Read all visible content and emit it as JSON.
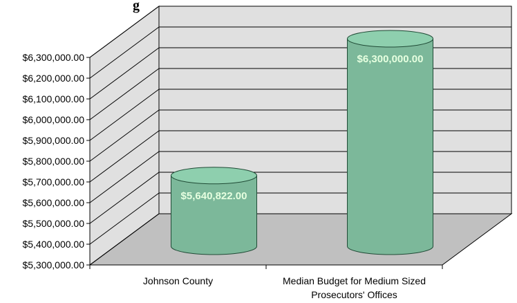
{
  "title_fragment": "g",
  "chart_data": {
    "type": "bar",
    "style": "3d-cylinder",
    "categories": [
      "Johnson County",
      "Median Budget for Medium Sized Prosecutors' Offices"
    ],
    "category_labels": [
      [
        "Johnson County"
      ],
      [
        "Median Budget for Medium Sized",
        "Prosecutors' Offices"
      ]
    ],
    "values": [
      5640822.0,
      6300000.0
    ],
    "data_labels": [
      "$5,640,822.00",
      "$6,300,000.00"
    ],
    "ylim": [
      5300000,
      6300000
    ],
    "y_ticks": [
      5300000,
      5400000,
      5500000,
      5600000,
      5700000,
      5800000,
      5900000,
      6000000,
      6100000,
      6200000,
      6300000
    ],
    "y_tick_labels": [
      "$5,300,000.00",
      "$5,400,000.00",
      "$5,500,000.00",
      "$5,600,000.00",
      "$5,700,000.00",
      "$5,800,000.00",
      "$5,900,000.00",
      "$6,000,000.00",
      "$6,100,000.00",
      "$6,200,000.00",
      "$6,300,000.00"
    ],
    "grid": true,
    "colors": {
      "bar_fill": "#7cb89a",
      "bar_top": "#8ecfae",
      "wall": "#e0e0e0",
      "floor": "#c0c0c0",
      "grid": "#000000"
    }
  }
}
